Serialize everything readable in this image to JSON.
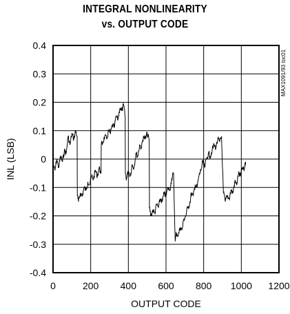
{
  "chart_data": {
    "type": "line",
    "title_lines": [
      "INTEGRAL NONLINEARITY",
      "vs. OUTPUT CODE"
    ],
    "xlabel": "OUTPUT CODE",
    "ylabel": "INL (LSB)",
    "watermark": "MAX1091/93 toc01",
    "xlim": [
      0,
      1200
    ],
    "ylim": [
      -0.4,
      0.4
    ],
    "x_ticks": [
      0,
      200,
      400,
      600,
      800,
      1000,
      1200
    ],
    "x_tick_labels": [
      "0",
      "200",
      "400",
      "600",
      "800",
      "1000",
      "1200"
    ],
    "y_ticks": [
      0.4,
      0.3,
      0.2,
      0.1,
      0,
      -0.1,
      -0.2,
      -0.3,
      -0.4
    ],
    "y_tick_labels": [
      "0.4",
      "0.3",
      "0.2",
      "0.1",
      "0",
      "-0.1",
      "-0.2",
      "-0.3",
      "-0.4"
    ],
    "grid": true,
    "line_color": "#000000",
    "grid_color": "#000000",
    "series": [
      {
        "x": [
          0,
          10,
          20,
          30,
          40,
          50,
          60,
          70,
          80,
          90,
          100,
          110,
          120,
          128,
          129,
          135,
          145,
          155,
          165,
          175,
          185,
          195,
          205,
          215,
          225,
          235,
          245,
          255,
          256,
          265,
          275,
          285,
          295,
          305,
          315,
          325,
          335,
          345,
          355,
          365,
          375,
          383,
          384,
          390,
          400,
          410,
          420,
          430,
          440,
          450,
          460,
          470,
          480,
          490,
          500,
          510,
          511,
          512,
          520,
          530,
          540,
          550,
          560,
          570,
          580,
          590,
          600,
          610,
          620,
          630,
          640,
          648,
          649,
          655,
          665,
          675,
          685,
          695,
          705,
          715,
          725,
          735,
          745,
          755,
          765,
          775,
          785,
          795,
          805,
          815,
          825,
          835,
          845,
          855,
          865,
          875,
          885,
          895,
          896,
          905,
          915,
          925,
          935,
          945,
          955,
          965,
          975,
          985,
          995,
          1005,
          1015,
          1023
        ],
        "y": [
          -0.02,
          -0.04,
          0.0,
          -0.03,
          0.01,
          -0.01,
          0.03,
          0.02,
          0.08,
          0.05,
          0.09,
          0.07,
          0.1,
          0.08,
          -0.13,
          -0.15,
          -0.12,
          -0.13,
          -0.1,
          -0.11,
          -0.08,
          -0.09,
          -0.06,
          -0.07,
          -0.04,
          -0.06,
          -0.03,
          -0.05,
          0.05,
          0.06,
          0.08,
          0.07,
          0.1,
          0.09,
          0.12,
          0.11,
          0.15,
          0.14,
          0.18,
          0.17,
          0.19,
          0.15,
          -0.05,
          -0.07,
          -0.04,
          -0.06,
          -0.02,
          -0.03,
          0.02,
          0.01,
          0.05,
          0.04,
          0.08,
          0.07,
          0.09,
          0.07,
          0.05,
          -0.17,
          -0.2,
          -0.18,
          -0.19,
          -0.16,
          -0.17,
          -0.14,
          -0.15,
          -0.12,
          -0.13,
          -0.1,
          -0.11,
          -0.07,
          -0.05,
          -0.27,
          -0.29,
          -0.26,
          -0.27,
          -0.24,
          -0.25,
          -0.21,
          -0.2,
          -0.17,
          -0.16,
          -0.12,
          -0.13,
          -0.09,
          -0.1,
          -0.06,
          -0.04,
          -0.01,
          -0.03,
          0.0,
          0.02,
          0.01,
          0.03,
          0.05,
          0.04,
          0.07,
          0.06,
          0.08,
          0.05,
          -0.12,
          -0.15,
          -0.13,
          -0.14,
          -0.11,
          -0.12,
          -0.08,
          -0.09,
          -0.05,
          -0.06,
          -0.03,
          -0.04,
          -0.01
        ]
      }
    ]
  }
}
